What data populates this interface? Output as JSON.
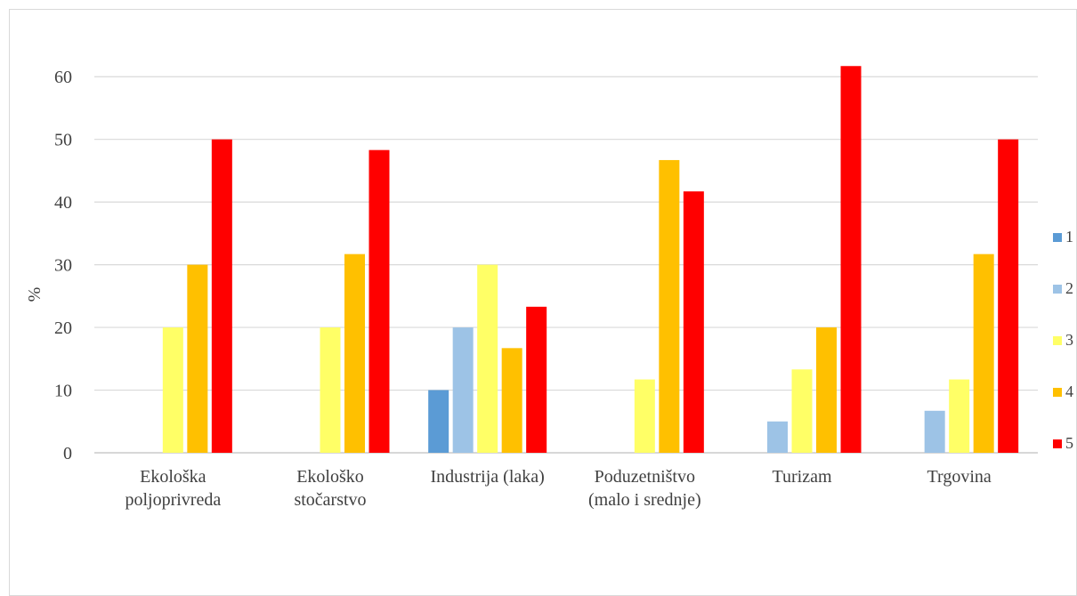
{
  "chart_data": {
    "type": "bar",
    "title": "",
    "xlabel": "",
    "ylabel": "%",
    "ylim": [
      0,
      65
    ],
    "yticks": [
      0,
      10,
      20,
      30,
      40,
      50,
      60
    ],
    "grid": true,
    "legend_position": "right",
    "categories": [
      [
        "Ekološka",
        "poljoprivreda"
      ],
      [
        "Ekološko",
        "stočarstvo"
      ],
      [
        "Industrija (laka)"
      ],
      [
        "Poduzetništvo",
        "(malo i srednje)"
      ],
      [
        "Turizam"
      ],
      [
        "Trgovina"
      ]
    ],
    "series": [
      {
        "name": "1",
        "color": "#5B9BD5",
        "values": [
          0,
          0,
          10,
          0,
          0,
          0
        ]
      },
      {
        "name": "2",
        "color": "#9DC3E6",
        "values": [
          0,
          0,
          20,
          0,
          5,
          6.7
        ]
      },
      {
        "name": "3",
        "color": "#FFFF66",
        "values": [
          20,
          20,
          30,
          11.7,
          13.3,
          11.7
        ]
      },
      {
        "name": "4",
        "color": "#FFC000",
        "values": [
          30,
          31.7,
          16.7,
          46.7,
          20,
          31.7
        ]
      },
      {
        "name": "5",
        "color": "#FF0000",
        "values": [
          50,
          48.3,
          23.3,
          41.7,
          61.7,
          50
        ]
      }
    ]
  }
}
